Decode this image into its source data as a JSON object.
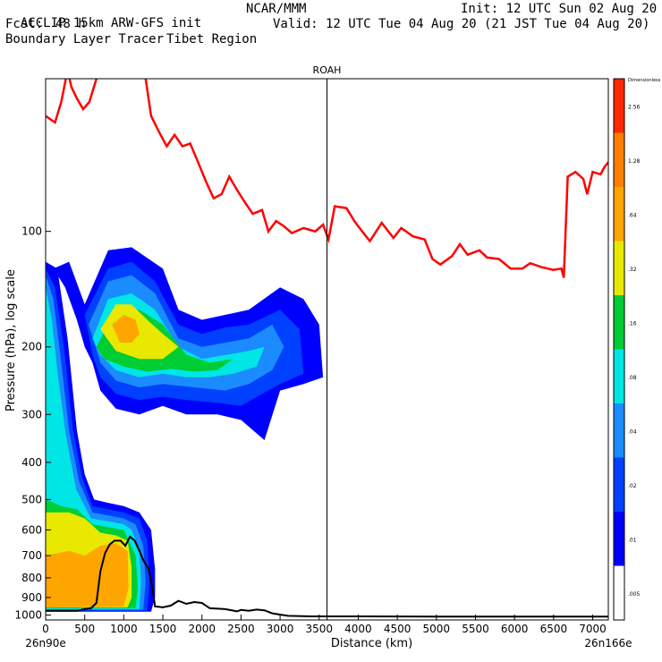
{
  "header": {
    "model": "ACCLIP 15km ARW-GFS init",
    "org": "NCAR/MMM",
    "init": "Init: 12 UTC Sun 02 Aug 20",
    "fcst_label": "Fcst:",
    "fcst_value": "48 h",
    "valid": "Valid: 12 UTC Tue 04 Aug 20 (21 JST Tue 04 Aug 20)",
    "product": "Boundary Layer Tracer",
    "region": "Tibet Region"
  },
  "chart_data": {
    "type": "cross-section",
    "title": "ROAH",
    "xlabel": "Distance (km)",
    "ylabel": "Pressure (hPa), log scale",
    "xlim": [
      0,
      7200
    ],
    "ylim_hpa": [
      1030,
      40
    ],
    "x_ticks": [
      0,
      500,
      1000,
      1500,
      2000,
      2500,
      3000,
      3500,
      4000,
      4500,
      5000,
      5500,
      6000,
      6500,
      7000
    ],
    "y_ticks": [
      1000,
      900,
      800,
      700,
      600,
      500,
      400,
      300,
      200,
      100
    ],
    "x_start_label": "26n90e",
    "x_end_label": "26n166e",
    "marker_line_km": 3600,
    "colorbar": {
      "title": "Dimensionless",
      "levels": [
        ".005",
        ".01",
        ".02",
        ".04",
        ".08",
        ".16",
        ".32",
        ".64",
        "1.28",
        "2.56"
      ],
      "colors": [
        "#ffffff",
        "#0000ff",
        "#0040ff",
        "#1a8cff",
        "#00e5e5",
        "#00cc33",
        "#e8e800",
        "#ffa500",
        "#ff7f00",
        "#ff2800"
      ]
    },
    "tropopause_series": {
      "color": "#ff0000",
      "points": [
        [
          0,
          50
        ],
        [
          120,
          52
        ],
        [
          200,
          46
        ],
        [
          280,
          38
        ],
        [
          330,
          42
        ],
        [
          400,
          45
        ],
        [
          480,
          48
        ],
        [
          560,
          46
        ],
        [
          650,
          40
        ],
        [
          700,
          26
        ],
        [
          760,
          20
        ],
        [
          850,
          22
        ],
        [
          950,
          28
        ],
        [
          1010,
          25
        ],
        [
          1060,
          30
        ],
        [
          1100,
          33
        ],
        [
          1200,
          20
        ],
        [
          1280,
          40
        ],
        [
          1350,
          50
        ],
        [
          1450,
          55
        ],
        [
          1550,
          60
        ],
        [
          1650,
          56
        ],
        [
          1750,
          60
        ],
        [
          1850,
          59
        ],
        [
          1950,
          66
        ],
        [
          2050,
          74
        ],
        [
          2150,
          82
        ],
        [
          2250,
          80
        ],
        [
          2350,
          72
        ],
        [
          2450,
          78
        ],
        [
          2550,
          84
        ],
        [
          2650,
          90
        ],
        [
          2770,
          88
        ],
        [
          2850,
          100
        ],
        [
          2950,
          94
        ],
        [
          3050,
          97
        ],
        [
          3150,
          101
        ],
        [
          3300,
          98
        ],
        [
          3450,
          100
        ],
        [
          3550,
          96
        ],
        [
          3620,
          105
        ],
        [
          3700,
          86
        ],
        [
          3850,
          87
        ],
        [
          3950,
          94
        ],
        [
          4050,
          100
        ],
        [
          4150,
          106
        ],
        [
          4300,
          95
        ],
        [
          4450,
          104
        ],
        [
          4550,
          98
        ],
        [
          4700,
          103
        ],
        [
          4850,
          105
        ],
        [
          4950,
          118
        ],
        [
          5050,
          122
        ],
        [
          5200,
          116
        ],
        [
          5300,
          108
        ],
        [
          5400,
          115
        ],
        [
          5550,
          112
        ],
        [
          5650,
          117
        ],
        [
          5800,
          118
        ],
        [
          5950,
          125
        ],
        [
          6100,
          125
        ],
        [
          6200,
          121
        ],
        [
          6350,
          124
        ],
        [
          6500,
          126
        ],
        [
          6600,
          125
        ],
        [
          6630,
          132
        ],
        [
          6680,
          72
        ],
        [
          6780,
          70
        ],
        [
          6880,
          73
        ],
        [
          6930,
          80
        ],
        [
          7000,
          70
        ],
        [
          7100,
          71
        ],
        [
          7150,
          68
        ],
        [
          7200,
          66
        ]
      ]
    },
    "terrain_series": {
      "color": "#000000",
      "points": [
        [
          0,
          975
        ],
        [
          400,
          975
        ],
        [
          500,
          965
        ],
        [
          580,
          960
        ],
        [
          650,
          930
        ],
        [
          700,
          770
        ],
        [
          760,
          690
        ],
        [
          820,
          655
        ],
        [
          880,
          640
        ],
        [
          960,
          640
        ],
        [
          1020,
          660
        ],
        [
          1080,
          625
        ],
        [
          1140,
          640
        ],
        [
          1200,
          680
        ],
        [
          1250,
          720
        ],
        [
          1320,
          760
        ],
        [
          1370,
          860
        ],
        [
          1400,
          950
        ],
        [
          1500,
          955
        ],
        [
          1600,
          945
        ],
        [
          1700,
          918
        ],
        [
          1800,
          935
        ],
        [
          1900,
          925
        ],
        [
          2000,
          930
        ],
        [
          2100,
          960
        ],
        [
          2300,
          965
        ],
        [
          2450,
          978
        ],
        [
          2500,
          970
        ],
        [
          2600,
          975
        ],
        [
          2700,
          968
        ],
        [
          2800,
          972
        ],
        [
          2900,
          990
        ],
        [
          3100,
          1005
        ],
        [
          3400,
          1008
        ],
        [
          4000,
          1008
        ],
        [
          5000,
          1010
        ],
        [
          6000,
          1010
        ],
        [
          7200,
          1010
        ]
      ]
    },
    "tracer_regions": [
      {
        "level": "0.01",
        "points": [
          [
            100,
            125
          ],
          [
            300,
            120
          ],
          [
            500,
            155
          ],
          [
            800,
            112
          ],
          [
            1100,
            110
          ],
          [
            1500,
            125
          ],
          [
            1700,
            160
          ],
          [
            2000,
            170
          ],
          [
            2300,
            165
          ],
          [
            2600,
            160
          ],
          [
            3000,
            140
          ],
          [
            3300,
            150
          ],
          [
            3500,
            175
          ],
          [
            3550,
            240
          ],
          [
            3300,
            250
          ],
          [
            3000,
            260
          ],
          [
            2800,
            350
          ],
          [
            2500,
            310
          ],
          [
            2200,
            300
          ],
          [
            1800,
            300
          ],
          [
            1500,
            285
          ],
          [
            1200,
            300
          ],
          [
            900,
            290
          ],
          [
            700,
            260
          ],
          [
            600,
            220
          ],
          [
            500,
            200
          ],
          [
            400,
            170
          ],
          [
            250,
            140
          ]
        ]
      },
      {
        "level": "0.01",
        "points": [
          [
            0,
            120
          ],
          [
            150,
            125
          ],
          [
            280,
            190
          ],
          [
            400,
            330
          ],
          [
            500,
            430
          ],
          [
            620,
            500
          ],
          [
            800,
            510
          ],
          [
            1000,
            520
          ],
          [
            1200,
            540
          ],
          [
            1350,
            600
          ],
          [
            1400,
            760
          ],
          [
            1400,
            900
          ],
          [
            1350,
            980
          ],
          [
            0,
            980
          ]
        ]
      },
      {
        "level": "0.02",
        "points": [
          [
            500,
            165
          ],
          [
            800,
            125
          ],
          [
            1100,
            120
          ],
          [
            1400,
            135
          ],
          [
            1700,
            175
          ],
          [
            2000,
            185
          ],
          [
            2300,
            178
          ],
          [
            2600,
            175
          ],
          [
            3000,
            160
          ],
          [
            3250,
            180
          ],
          [
            3300,
            235
          ],
          [
            3000,
            250
          ],
          [
            2700,
            270
          ],
          [
            2500,
            285
          ],
          [
            2200,
            280
          ],
          [
            1800,
            275
          ],
          [
            1500,
            270
          ],
          [
            1200,
            275
          ],
          [
            900,
            265
          ],
          [
            700,
            240
          ],
          [
            600,
            210
          ]
        ]
      },
      {
        "level": "0.02",
        "points": [
          [
            0,
            125
          ],
          [
            120,
            140
          ],
          [
            240,
            205
          ],
          [
            350,
            330
          ],
          [
            470,
            440
          ],
          [
            600,
            520
          ],
          [
            800,
            530
          ],
          [
            1000,
            540
          ],
          [
            1200,
            560
          ],
          [
            1300,
            640
          ],
          [
            1330,
            820
          ],
          [
            1300,
            975
          ],
          [
            0,
            975
          ]
        ]
      },
      {
        "level": "0.04",
        "points": [
          [
            550,
            175
          ],
          [
            800,
            135
          ],
          [
            1100,
            130
          ],
          [
            1400,
            145
          ],
          [
            1700,
            190
          ],
          [
            2000,
            200
          ],
          [
            2300,
            195
          ],
          [
            2600,
            190
          ],
          [
            2900,
            175
          ],
          [
            3050,
            200
          ],
          [
            2900,
            230
          ],
          [
            2600,
            250
          ],
          [
            2300,
            260
          ],
          [
            1900,
            255
          ],
          [
            1500,
            250
          ],
          [
            1200,
            255
          ],
          [
            900,
            245
          ],
          [
            700,
            220
          ]
        ]
      },
      {
        "level": "0.04",
        "points": [
          [
            0,
            130
          ],
          [
            100,
            150
          ],
          [
            200,
            220
          ],
          [
            300,
            330
          ],
          [
            430,
            450
          ],
          [
            600,
            540
          ],
          [
            800,
            550
          ],
          [
            1000,
            560
          ],
          [
            1150,
            580
          ],
          [
            1250,
            660
          ],
          [
            1280,
            820
          ],
          [
            1250,
            970
          ],
          [
            0,
            970
          ]
        ]
      },
      {
        "level": "0.08",
        "points": [
          [
            600,
            190
          ],
          [
            800,
            150
          ],
          [
            1100,
            145
          ],
          [
            1400,
            160
          ],
          [
            1700,
            200
          ],
          [
            2000,
            215
          ],
          [
            2300,
            210
          ],
          [
            2600,
            205
          ],
          [
            2800,
            200
          ],
          [
            2700,
            225
          ],
          [
            2400,
            235
          ],
          [
            2100,
            240
          ],
          [
            1800,
            240
          ],
          [
            1500,
            235
          ],
          [
            1200,
            240
          ],
          [
            900,
            230
          ],
          [
            700,
            210
          ]
        ]
      },
      {
        "level": "0.08",
        "points": [
          [
            0,
            140
          ],
          [
            80,
            170
          ],
          [
            160,
            240
          ],
          [
            260,
            340
          ],
          [
            390,
            470
          ],
          [
            580,
            560
          ],
          [
            800,
            570
          ],
          [
            1000,
            580
          ],
          [
            1100,
            600
          ],
          [
            1200,
            680
          ],
          [
            1220,
            820
          ],
          [
            1200,
            965
          ],
          [
            0,
            965
          ]
        ]
      },
      {
        "level": "0.16",
        "points": [
          [
            650,
            200
          ],
          [
            900,
            160
          ],
          [
            1200,
            160
          ],
          [
            1500,
            175
          ],
          [
            1800,
            210
          ],
          [
            2100,
            220
          ],
          [
            2400,
            215
          ],
          [
            2200,
            230
          ],
          [
            1900,
            232
          ],
          [
            1600,
            228
          ],
          [
            1300,
            232
          ],
          [
            1000,
            225
          ],
          [
            750,
            215
          ]
        ]
      },
      {
        "level": "0.16",
        "points": [
          [
            0,
            500
          ],
          [
            200,
            520
          ],
          [
            400,
            530
          ],
          [
            600,
            580
          ],
          [
            800,
            590
          ],
          [
            1000,
            600
          ],
          [
            1150,
            700
          ],
          [
            1180,
            850
          ],
          [
            1150,
            960
          ],
          [
            0,
            960
          ]
        ]
      },
      {
        "level": "0.32",
        "points": [
          [
            700,
            180
          ],
          [
            900,
            155
          ],
          [
            1100,
            155
          ],
          [
            1300,
            170
          ],
          [
            1500,
            185
          ],
          [
            1700,
            200
          ],
          [
            1500,
            215
          ],
          [
            1200,
            215
          ],
          [
            900,
            205
          ]
        ]
      },
      {
        "level": "0.32",
        "points": [
          [
            0,
            540
          ],
          [
            300,
            540
          ],
          [
            500,
            560
          ],
          [
            700,
            610
          ],
          [
            900,
            620
          ],
          [
            1050,
            640
          ],
          [
            1100,
            750
          ],
          [
            1100,
            900
          ],
          [
            1050,
            955
          ],
          [
            0,
            955
          ]
        ]
      },
      {
        "level": "0.64",
        "points": [
          [
            850,
            175
          ],
          [
            1000,
            165
          ],
          [
            1150,
            170
          ],
          [
            1200,
            185
          ],
          [
            1100,
            195
          ],
          [
            950,
            195
          ]
        ]
      },
      {
        "level": "0.64",
        "points": [
          [
            0,
            700
          ],
          [
            300,
            680
          ],
          [
            500,
            700
          ],
          [
            700,
            660
          ],
          [
            900,
            650
          ],
          [
            1050,
            680
          ],
          [
            1060,
            850
          ],
          [
            1000,
            950
          ],
          [
            0,
            955
          ]
        ]
      }
    ]
  }
}
